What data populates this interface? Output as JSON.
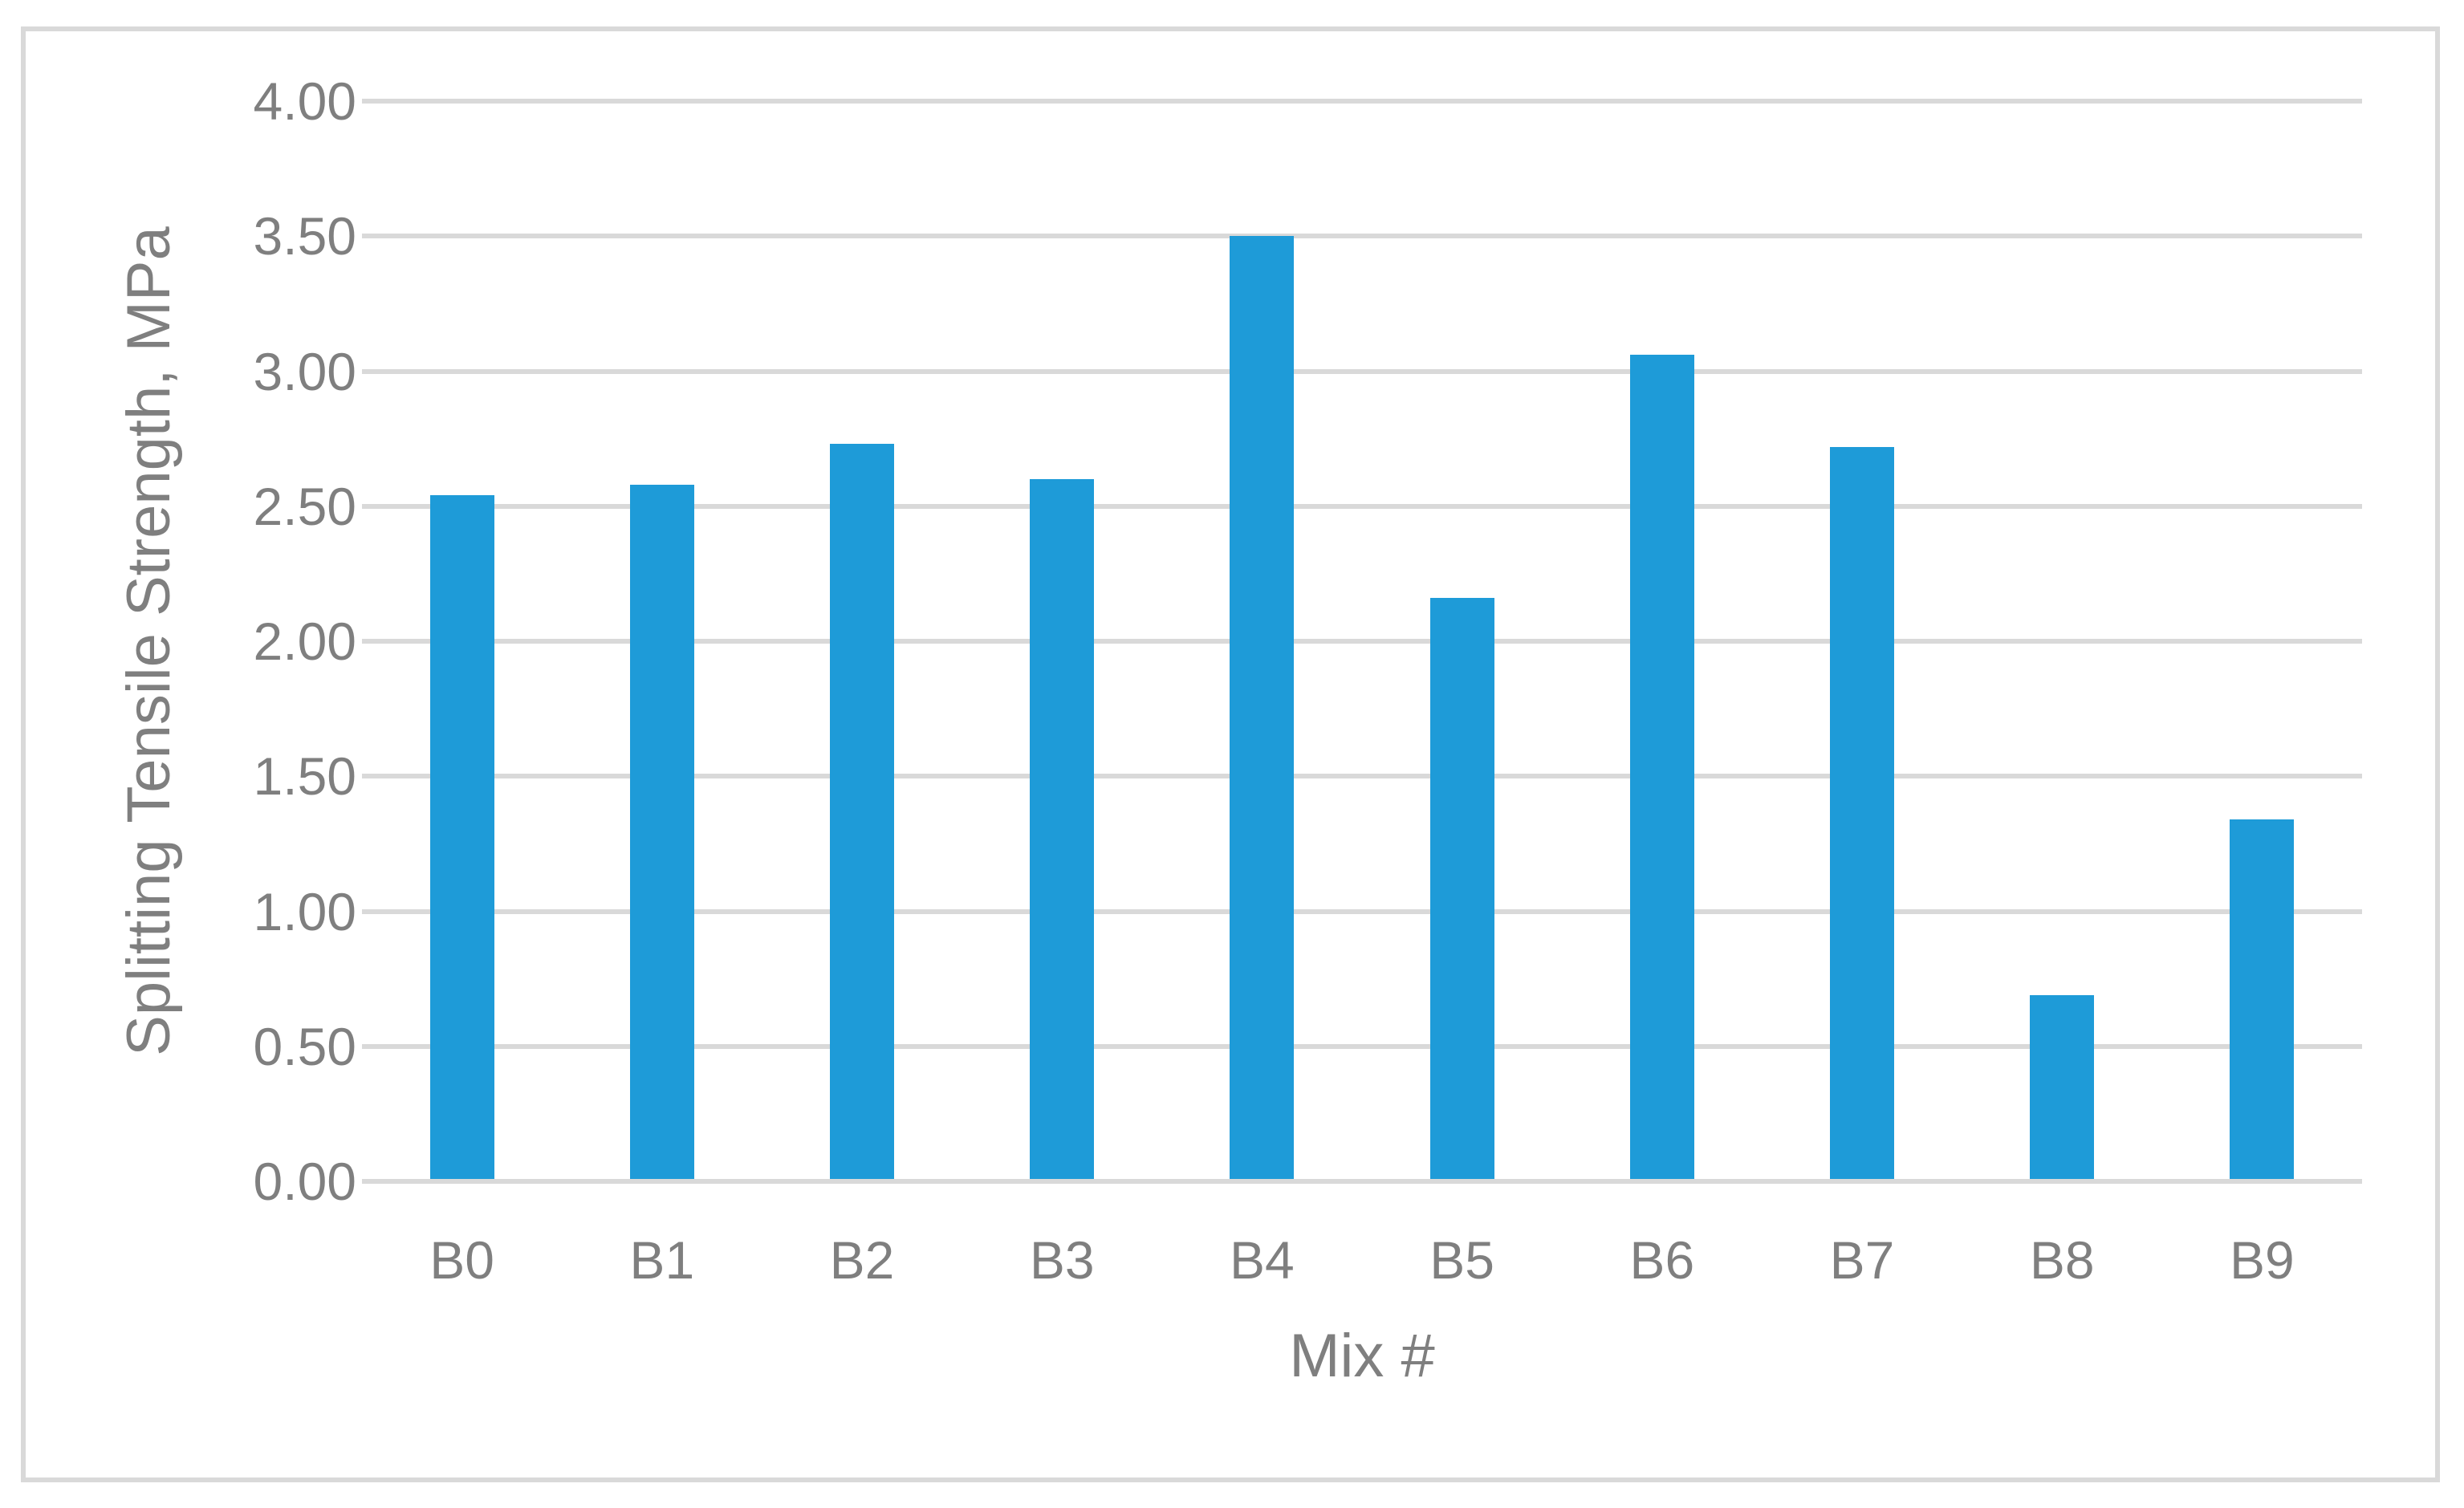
{
  "chart_data": {
    "type": "bar",
    "categories": [
      "B0",
      "B1",
      "B2",
      "B3",
      "B4",
      "B5",
      "B6",
      "B7",
      "B8",
      "B9"
    ],
    "values": [
      2.54,
      2.58,
      2.73,
      2.6,
      3.5,
      2.16,
      3.06,
      2.72,
      0.69,
      1.34
    ],
    "title": "",
    "xlabel": "Mix #",
    "ylabel": "Splitting Tensile Strength, MPa",
    "ylim": [
      0.0,
      4.0
    ],
    "ytick_step": 0.5,
    "ytick_labels": [
      "0.00",
      "0.50",
      "1.00",
      "1.50",
      "2.00",
      "2.50",
      "3.00",
      "3.50",
      "4.00"
    ],
    "grid": true,
    "legend": false,
    "series_name": "Splitting Tensile Strength",
    "colors": {
      "bar": "#1E9BD8",
      "gridline": "#D9D9D9",
      "axis_line": "#D9D9D9",
      "text": "#7F7F7F",
      "frame_border": "#D9D9D9",
      "background": "#FFFFFF"
    }
  }
}
